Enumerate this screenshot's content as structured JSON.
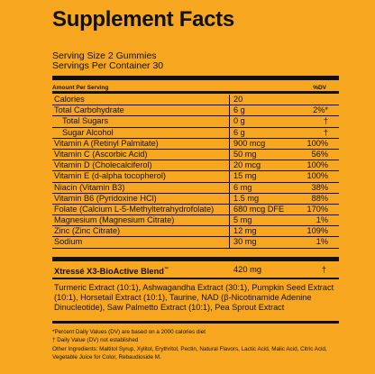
{
  "title": "Supplement Facts",
  "serving_size": "Serving Size 2 Gummies",
  "servings_per_container": "Servings Per Container 30",
  "header": {
    "amount": "Amount Per Serving",
    "dv": "%DV"
  },
  "rows": [
    {
      "name": "Calories",
      "amount": "20",
      "dv": "",
      "indent": false
    },
    {
      "name": "Total Carbohydrate",
      "amount": "6 g",
      "dv": "2%*",
      "indent": false
    },
    {
      "name": "Total Sugars",
      "amount": "0 g",
      "dv": "†",
      "indent": true
    },
    {
      "name": "Sugar Alcohol",
      "amount": "6 g",
      "dv": "†",
      "indent": true
    },
    {
      "name": "Vitamin A (Retinyl Palmitate)",
      "amount": "900 mcg",
      "dv": "100%",
      "indent": false
    },
    {
      "name": "Vitamin C (Ascorbic Acid)",
      "amount": "50 mg",
      "dv": "56%",
      "indent": false
    },
    {
      "name": "Vitamin D (Cholecalciferol)",
      "amount": "20 mcg",
      "dv": "100%",
      "indent": false
    },
    {
      "name": "Vitamin E (d-alpha tocopherol)",
      "amount": "15 mg",
      "dv": "100%",
      "indent": false
    },
    {
      "name": "Niacin (Vitamin B3)",
      "amount": "6 mg",
      "dv": "38%",
      "indent": false
    },
    {
      "name": "Vitamin B6 (Pyridoxine HCl)",
      "amount": "1.5 mg",
      "dv": "88%",
      "indent": false
    },
    {
      "name": "Folate (Calcium L-5-Methyltetrahydrofolate)",
      "amount": "680 mcg DFE",
      "dv": "170%",
      "indent": false
    },
    {
      "name": "Magnesium (Magnesium Citrate)",
      "amount": "5 mg",
      "dv": "1%",
      "indent": false
    },
    {
      "name": "Zinc (Zinc Citrate)",
      "amount": "12 mg",
      "dv": "109%",
      "indent": false
    },
    {
      "name": "Sodium",
      "amount": "30 mg",
      "dv": "1%",
      "indent": false
    }
  ],
  "blend": {
    "name": "Xtressé X3-BioActive Blend",
    "tm": "™",
    "amount": "420 mg",
    "dv": "†"
  },
  "blend_ingredients": "Turmeric Extract (10:1), Ashwagandha Extract (30:1), Pumpkin Seed Extract (10:1), Horsetail Extract (10:1), Taurine, NAD (β-Nicotinamide Adenine Dinucleotide), Saw Palmetto Extract (10:1), Pea Sprout Extract",
  "footnotes": {
    "percent_dv": "*Percent Daily Values (DV) are based on a 2000 calories diet",
    "dagger": "† Daily Value (DV) not established",
    "other_ingredients": "Other Ingredients: Maltitol Syrup, Xylitol, Erythritol, Pectin, Natural Flavors, Lactic Acid, Malic Acid, Citric Acid, Vegetable Juice for Color, Rebaudioside M."
  },
  "colors": {
    "background": "#f6a61f",
    "ink": "#111111"
  }
}
